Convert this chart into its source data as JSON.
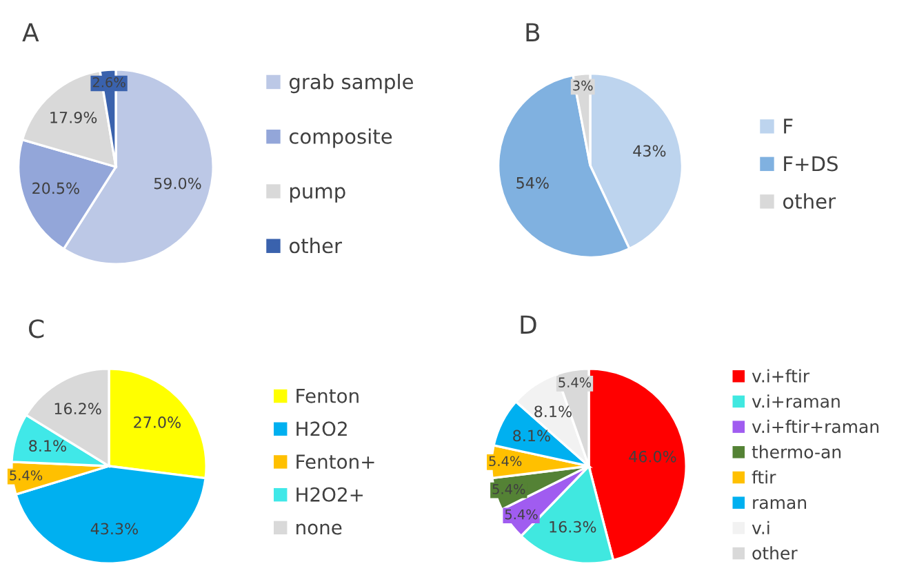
{
  "chart_data": [
    {
      "type": "pie",
      "title": "A",
      "categories": [
        "grab sample",
        "composite",
        "pump",
        "other"
      ],
      "values": [
        59.0,
        20.5,
        17.9,
        2.6
      ],
      "value_labels": [
        "59.0%",
        "20.5%",
        "17.9%",
        "2.6%"
      ],
      "colors": [
        "#bcc8e6",
        "#93a6d9",
        "#d9d9d9",
        "#3a62ad"
      ],
      "legend": "right"
    },
    {
      "type": "pie",
      "title": "B",
      "categories": [
        "F",
        "F+DS",
        "other"
      ],
      "values": [
        43,
        54,
        3
      ],
      "value_labels": [
        "43%",
        "54%",
        "3%"
      ],
      "colors": [
        "#bdd4ee",
        "#80b1e0",
        "#d9d9d9"
      ],
      "legend": "right"
    },
    {
      "type": "pie",
      "title": "C",
      "categories": [
        "Fenton",
        "H2O2",
        "Fenton+",
        "H2O2+",
        "none"
      ],
      "values": [
        27.0,
        43.3,
        5.4,
        8.1,
        16.2
      ],
      "value_labels": [
        "27.0%",
        "43.3%",
        "5.4%",
        "8.1%",
        "16.2%"
      ],
      "colors": [
        "#ffff00",
        "#00b0f0",
        "#ffc000",
        "#40e8e8",
        "#d9d9d9"
      ],
      "legend": "right"
    },
    {
      "type": "pie",
      "title": "D",
      "categories": [
        "v.i+ftir",
        "v.i+raman",
        "v.i+ftir+raman",
        "thermo-an",
        "ftir",
        "raman",
        "v.i",
        "other"
      ],
      "values": [
        46.0,
        16.3,
        5.4,
        5.4,
        5.4,
        8.1,
        8.1,
        5.4
      ],
      "value_labels": [
        "46.0%",
        "16.3%",
        "5.4%",
        "5.4%",
        "5.4%",
        "8.1%",
        "8.1%",
        "5.4%"
      ],
      "colors": [
        "#ff0000",
        "#40e8e0",
        "#a05cf0",
        "#548235",
        "#ffc000",
        "#00b0f0",
        "#f2f2f2",
        "#d9d9d9"
      ],
      "legend": "right"
    }
  ]
}
